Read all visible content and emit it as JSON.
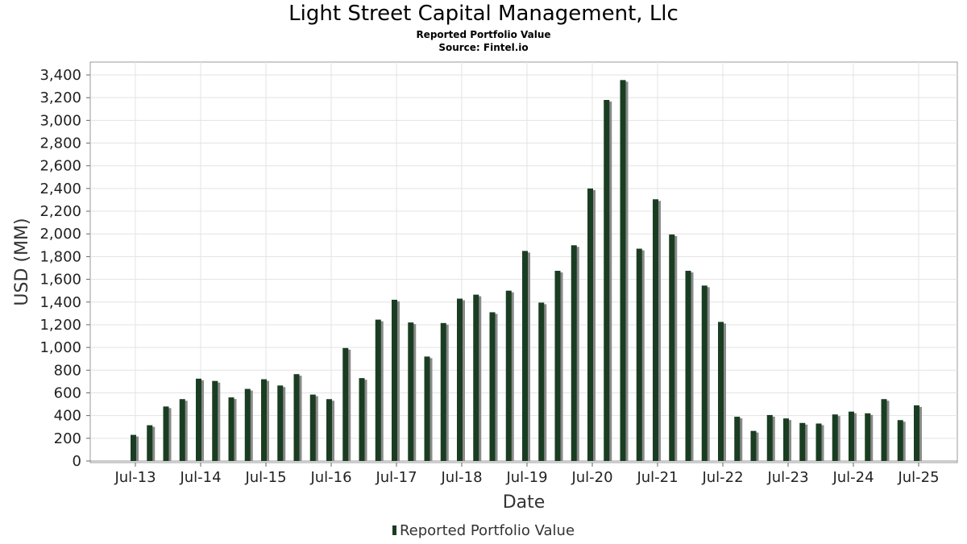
{
  "chart_data": {
    "type": "bar",
    "title": "Light Street Capital Management, Llc",
    "subtitle": [
      "Reported Portfolio Value",
      "Source: Fintel.io"
    ],
    "xlabel": "Date",
    "ylabel": "USD (MM)",
    "ylim": [
      0,
      3550
    ],
    "yticks": [
      0,
      200,
      400,
      600,
      800,
      1000,
      1200,
      1400,
      1600,
      1800,
      2000,
      2200,
      2400,
      2600,
      2800,
      3000,
      3200,
      3400
    ],
    "ytick_labels": [
      "0",
      "200",
      "400",
      "600",
      "800",
      "1,000",
      "1,200",
      "1,400",
      "1,600",
      "1,800",
      "2,000",
      "2,200",
      "2,400",
      "2,600",
      "2,800",
      "3,000",
      "3,200",
      "3,400"
    ],
    "xtick_labels": [
      "Jul-13",
      "Jul-14",
      "Jul-15",
      "Jul-16",
      "Jul-17",
      "Jul-18",
      "Jul-19",
      "Jul-20",
      "Jul-21",
      "Jul-22",
      "Jul-23",
      "Jul-24",
      "Jul-25"
    ],
    "grid": true,
    "legend_position": "bottom-center",
    "bar_color": "#1a3d22",
    "shadow_color": "#8a8a8a",
    "series": [
      {
        "name": "Reported Portfolio Value",
        "values": [
          230,
          315,
          480,
          545,
          725,
          705,
          560,
          635,
          720,
          665,
          765,
          585,
          545,
          995,
          730,
          1245,
          1420,
          1220,
          920,
          1215,
          1430,
          1465,
          1310,
          1500,
          1850,
          1395,
          1675,
          1900,
          2400,
          3180,
          3355,
          1870,
          2305,
          1995,
          1675,
          1545,
          1225,
          390,
          265,
          405,
          375,
          335,
          330,
          410,
          435,
          420,
          545,
          360,
          490
        ]
      }
    ]
  }
}
